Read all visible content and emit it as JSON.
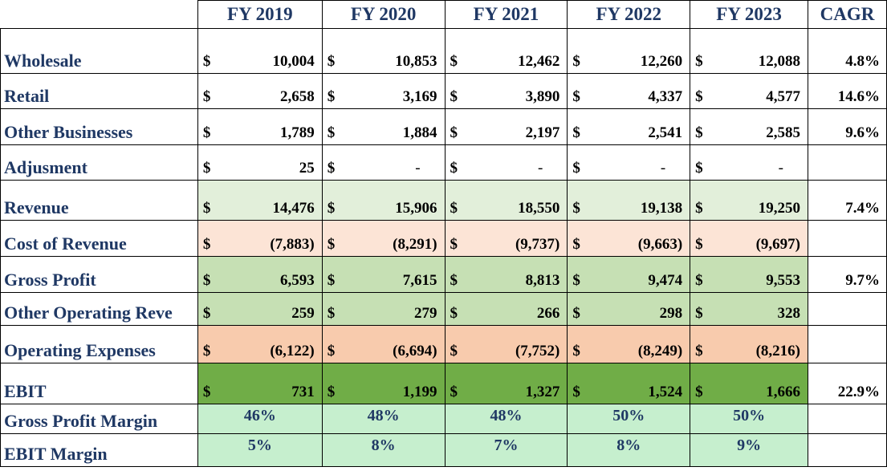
{
  "header": {
    "years": [
      "FY 2019",
      "FY 2020",
      "FY 2021",
      "FY 2022",
      "FY 2023"
    ],
    "cagr": "CAGR"
  },
  "currency_symbol": "$",
  "rows": [
    {
      "label": "Wholesale",
      "values": [
        "10,004",
        "10,853",
        "12,462",
        "12,260",
        "12,088"
      ],
      "cagr": "4.8%"
    },
    {
      "label": "Retail",
      "values": [
        "2,658",
        "3,169",
        "3,890",
        "4,337",
        "4,577"
      ],
      "cagr": "14.6%"
    },
    {
      "label": "Other Businesses",
      "values": [
        "1,789",
        "1,884",
        "2,197",
        "2,541",
        "2,585"
      ],
      "cagr": "9.6%"
    },
    {
      "label": "Adjusment",
      "values": [
        "25",
        "-",
        "-",
        "-",
        "-"
      ],
      "cagr": ""
    },
    {
      "label": "Revenue",
      "values": [
        "14,476",
        "15,906",
        "18,550",
        "19,138",
        "19,250"
      ],
      "cagr": "7.4%"
    },
    {
      "label": "Cost of Revenue",
      "values": [
        "(7,883)",
        "(8,291)",
        "(9,737)",
        "(9,663)",
        "(9,697)"
      ],
      "cagr": ""
    },
    {
      "label": "Gross Profit",
      "values": [
        "6,593",
        "7,615",
        "8,813",
        "9,474",
        "9,553"
      ],
      "cagr": "9.7%"
    },
    {
      "label": "Other Operating Reve",
      "values": [
        "259",
        "279",
        "266",
        "298",
        "328"
      ],
      "cagr": ""
    },
    {
      "label": "Operating Expenses",
      "values": [
        "(6,122)",
        "(6,694)",
        "(7,752)",
        "(8,249)",
        "(8,216)"
      ],
      "cagr": ""
    },
    {
      "label": "EBIT",
      "values": [
        "731",
        "1,199",
        "1,327",
        "1,524",
        "1,666"
      ],
      "cagr": "22.9%"
    }
  ],
  "margins": [
    {
      "label": "Gross Profit Margin",
      "values": [
        "46%",
        "48%",
        "48%",
        "50%",
        "50%"
      ]
    },
    {
      "label": "EBIT Margin",
      "values": [
        "5%",
        "8%",
        "7%",
        "8%",
        "9%"
      ]
    }
  ],
  "colors": {
    "header_text": "#1f3864",
    "revenue_fill": "#e2efda",
    "cost_fill": "#fce4d6",
    "gross_profit_fill": "#c6e0b4",
    "opex_fill": "#f8cbad",
    "ebit_fill": "#70ad47",
    "margin_fill": "#c6efce"
  }
}
